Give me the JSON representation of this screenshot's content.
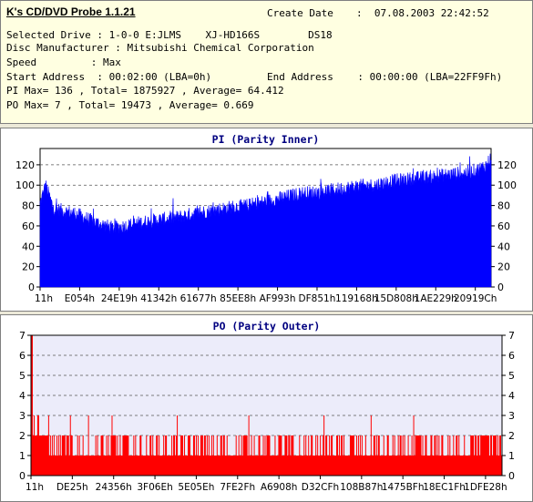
{
  "header": {
    "app_title": "K's CD/DVD Probe 1.1.21",
    "create_date_label": "Create Date",
    "create_date_value": ":  07.08.2003 22:42:52",
    "selected_drive": "Selected Drive : 1-0-0 E:JLMS    XJ-HD166S        DS18",
    "disc_manufacturer": "Disc Manufacturer : Mitsubishi Chemical Corporation",
    "speed": "Speed         : Max",
    "start_address": "Start Address  : 00:02:00 (LBA=0h)",
    "end_address": "End Address    : 00:00:00 (LBA=22FF9Fh)",
    "pi_summary": "PI Max= 136 , Total= 1875927 , Average= 64.412",
    "po_summary": "PO Max= 7 , Total= 19473 , Average= 0.669"
  },
  "chart_data": [
    {
      "type": "area",
      "title": "PI (Parity Inner)",
      "color": "#0000ff",
      "ylim": [
        0,
        136
      ],
      "yticks": [
        0,
        20,
        40,
        60,
        80,
        100,
        120
      ],
      "xticks": [
        "11h",
        "E054h",
        "24E19h",
        "41342h",
        "61677h",
        "85EE8h",
        "AF993h",
        "DF851h",
        "119168h",
        "15D808h",
        "1AE229h",
        "20919Ch"
      ],
      "profile": [
        [
          0,
          82
        ],
        [
          0.012,
          100
        ],
        [
          0.03,
          77
        ],
        [
          0.08,
          72
        ],
        [
          0.12,
          64
        ],
        [
          0.16,
          58
        ],
        [
          0.19,
          60
        ],
        [
          0.22,
          63
        ],
        [
          0.26,
          66
        ],
        [
          0.3,
          68
        ],
        [
          0.34,
          72
        ],
        [
          0.38,
          75
        ],
        [
          0.42,
          78
        ],
        [
          0.46,
          80
        ],
        [
          0.5,
          84
        ],
        [
          0.54,
          88
        ],
        [
          0.58,
          92
        ],
        [
          0.62,
          93
        ],
        [
          0.66,
          96
        ],
        [
          0.7,
          99
        ],
        [
          0.74,
          100
        ],
        [
          0.78,
          104
        ],
        [
          0.82,
          106
        ],
        [
          0.86,
          108
        ],
        [
          0.9,
          110
        ],
        [
          0.94,
          112
        ],
        [
          0.97,
          115
        ],
        [
          0.99,
          120
        ],
        [
          1,
          128
        ]
      ],
      "max": 136
    },
    {
      "type": "bar",
      "title": "PO (Parity Outer)",
      "color": "#ff0000",
      "ylim": [
        0,
        7
      ],
      "yticks": [
        0,
        1,
        2,
        3,
        4,
        5,
        6,
        7
      ],
      "xticks": [
        "11h",
        "DE25h",
        "24356h",
        "3F06Eh",
        "5E05Eh",
        "7FE2Fh",
        "A6908h",
        "D32CFh",
        "108B87h",
        "1475BFh",
        "18EC1Fh",
        "1DFE28h"
      ],
      "max": 7
    }
  ]
}
